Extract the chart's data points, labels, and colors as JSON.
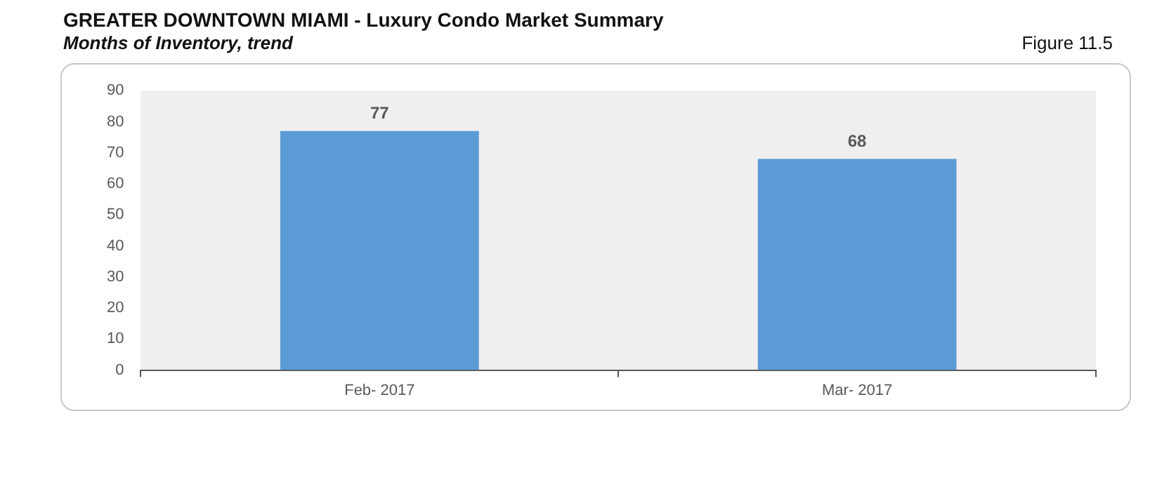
{
  "chart_data": {
    "type": "bar",
    "title": "GREATER DOWNTOWN MIAMI - Luxury Condo Market Summary",
    "subtitle": "Months of Inventory, trend",
    "annotations": [
      "Figure 11.5"
    ],
    "categories": [
      "Feb- 2017",
      "Mar- 2017"
    ],
    "values": [
      77,
      68
    ],
    "color": "#5b9bd5",
    "ylim": [
      0,
      90
    ],
    "yticks": [
      0,
      10,
      20,
      30,
      40,
      50,
      60,
      70,
      80,
      90
    ],
    "grid": false,
    "legend": false,
    "data_labels": true
  }
}
